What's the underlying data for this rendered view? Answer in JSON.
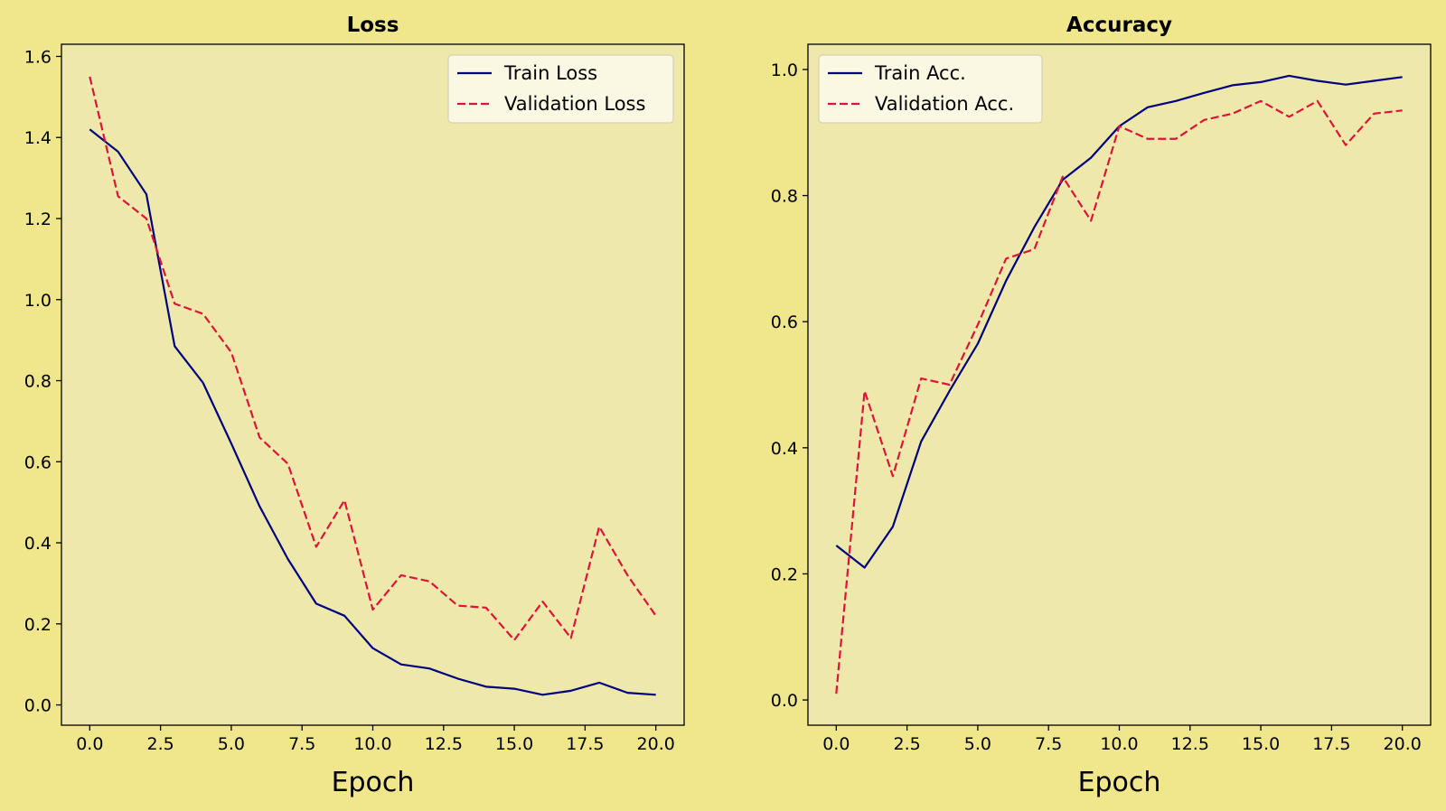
{
  "figure": {
    "background": "#f0e68c",
    "axes_background": "#eee8aa",
    "train_color": "#000080",
    "val_color": "#dc143c",
    "legend_background": "#fbf9ec"
  },
  "chart_data": [
    {
      "type": "line",
      "title": "Loss",
      "xlabel": "Epoch",
      "ylabel": "",
      "xlim": [
        -1,
        21
      ],
      "ylim": [
        -0.05,
        1.63
      ],
      "xticks": [
        0,
        2.5,
        5,
        7.5,
        10,
        12.5,
        15,
        17.5,
        20
      ],
      "xtick_labels": [
        "0.0",
        "2.5",
        "5.0",
        "7.5",
        "10.0",
        "12.5",
        "15.0",
        "17.5",
        "20.0"
      ],
      "yticks": [
        0,
        0.2,
        0.4,
        0.6,
        0.8,
        1.0,
        1.2,
        1.4,
        1.6
      ],
      "ytick_labels": [
        "0.0",
        "0.2",
        "0.4",
        "0.6",
        "0.8",
        "1.0",
        "1.2",
        "1.4",
        "1.6"
      ],
      "grid": false,
      "legend_position": "top-right",
      "x": [
        0,
        1,
        2,
        3,
        4,
        5,
        6,
        7,
        8,
        9,
        10,
        11,
        12,
        13,
        14,
        15,
        16,
        17,
        18,
        19,
        20
      ],
      "series": [
        {
          "name": "Train Loss",
          "style": "solid",
          "values": [
            1.42,
            1.365,
            1.26,
            0.885,
            0.795,
            0.645,
            0.49,
            0.36,
            0.25,
            0.22,
            0.14,
            0.1,
            0.09,
            0.065,
            0.045,
            0.04,
            0.025,
            0.035,
            0.055,
            0.03,
            0.025
          ]
        },
        {
          "name": "Validation Loss",
          "style": "dashed",
          "values": [
            1.55,
            1.255,
            1.2,
            0.99,
            0.965,
            0.87,
            0.66,
            0.595,
            0.39,
            0.505,
            0.235,
            0.32,
            0.305,
            0.245,
            0.24,
            0.16,
            0.255,
            0.165,
            0.44,
            0.32,
            0.22
          ]
        }
      ]
    },
    {
      "type": "line",
      "title": "Accuracy",
      "xlabel": "Epoch",
      "ylabel": "",
      "xlim": [
        -1,
        21
      ],
      "ylim": [
        -0.04,
        1.04
      ],
      "xticks": [
        0,
        2.5,
        5,
        7.5,
        10,
        12.5,
        15,
        17.5,
        20
      ],
      "xtick_labels": [
        "0.0",
        "2.5",
        "5.0",
        "7.5",
        "10.0",
        "12.5",
        "15.0",
        "17.5",
        "20.0"
      ],
      "yticks": [
        0,
        0.2,
        0.4,
        0.6,
        0.8,
        1.0
      ],
      "ytick_labels": [
        "0.0",
        "0.2",
        "0.4",
        "0.6",
        "0.8",
        "1.0"
      ],
      "grid": false,
      "legend_position": "top-left",
      "x": [
        0,
        1,
        2,
        3,
        4,
        5,
        6,
        7,
        8,
        9,
        10,
        11,
        12,
        13,
        14,
        15,
        16,
        17,
        18,
        19,
        20
      ],
      "series": [
        {
          "name": "Train Acc.",
          "style": "solid",
          "values": [
            0.245,
            0.21,
            0.275,
            0.41,
            0.49,
            0.565,
            0.665,
            0.75,
            0.825,
            0.86,
            0.91,
            0.94,
            0.95,
            0.963,
            0.975,
            0.98,
            0.99,
            0.982,
            0.976,
            0.982,
            0.988
          ]
        },
        {
          "name": "Validation Acc.",
          "style": "dashed",
          "values": [
            0.01,
            0.49,
            0.355,
            0.51,
            0.5,
            0.595,
            0.7,
            0.715,
            0.83,
            0.76,
            0.91,
            0.89,
            0.89,
            0.92,
            0.93,
            0.95,
            0.925,
            0.95,
            0.88,
            0.93,
            0.935
          ]
        }
      ]
    }
  ]
}
